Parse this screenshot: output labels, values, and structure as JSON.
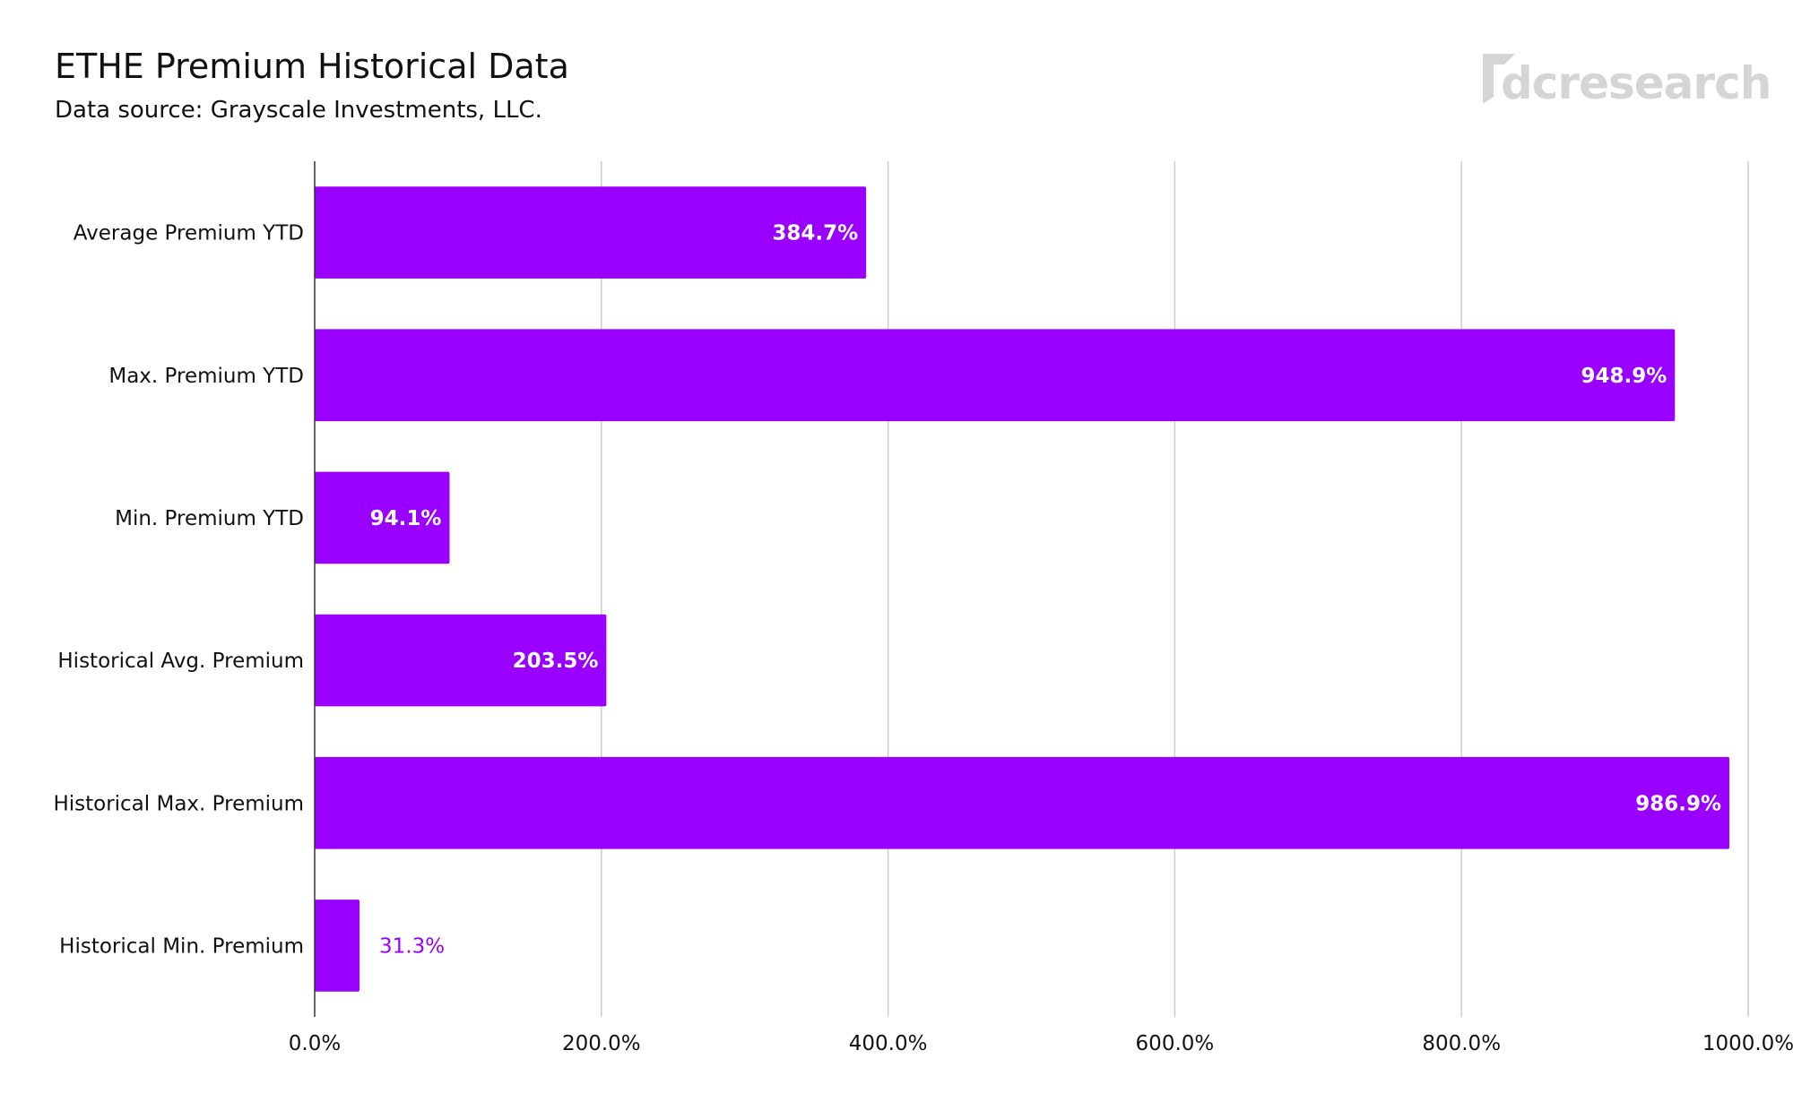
{
  "chart_data": {
    "type": "bar",
    "orientation": "horizontal",
    "title": "ETHE Premium Historical Data",
    "subtitle": "Data source: Grayscale Investments, LLC.",
    "categories": [
      "Average Premium YTD",
      "Max. Premium YTD",
      "Min. Premium YTD",
      "Historical Avg. Premium",
      "Historical Max. Premium",
      "Historical Min. Premium"
    ],
    "values": [
      384.7,
      948.9,
      94.1,
      203.5,
      986.9,
      31.3
    ],
    "value_labels": [
      "384.7%",
      "948.9%",
      "94.1%",
      "203.5%",
      "986.9%",
      "31.3%"
    ],
    "xlim": [
      0,
      1000
    ],
    "x_ticks": [
      0,
      200,
      400,
      600,
      800,
      1000
    ],
    "x_tick_labels": [
      "0.0%",
      "200.0%",
      "400.0%",
      "600.0%",
      "800.0%",
      "1000.0%"
    ],
    "xlabel": "",
    "ylabel": "",
    "grid": "vertical",
    "bar_color": "#9900ff"
  },
  "logo": {
    "text": "dcresearch",
    "color": "#d5d5d5"
  }
}
